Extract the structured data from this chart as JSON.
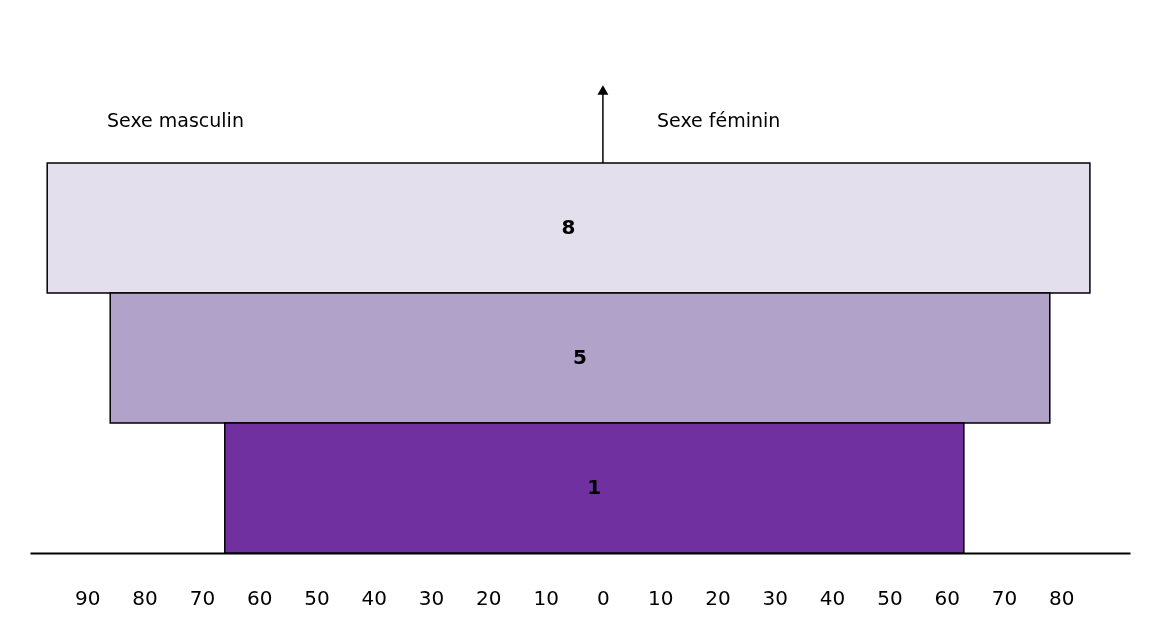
{
  "chart_data": {
    "type": "bar",
    "orientation": "horizontal",
    "categories": [
      null,
      null,
      null
    ],
    "base": [
      -97,
      -86,
      -66
    ],
    "values": [
      182,
      164,
      129
    ],
    "colors": [
      "#e3dfec",
      "#b0a2c8",
      "#7030a0"
    ],
    "annotations": [
      "Sexe masculin",
      "Sexe féminin",
      "8",
      "5",
      "1"
    ],
    "xlim": [
      -100,
      92
    ],
    "xticks": [
      {
        "value": -90,
        "label": "90"
      },
      {
        "value": -80,
        "label": "80"
      },
      {
        "value": -70,
        "label": "70"
      },
      {
        "value": -60,
        "label": "60"
      },
      {
        "value": -50,
        "label": "50"
      },
      {
        "value": -40,
        "label": "40"
      },
      {
        "value": -30,
        "label": "30"
      },
      {
        "value": -20,
        "label": "20"
      },
      {
        "value": -10,
        "label": "10"
      },
      0,
      10,
      20,
      30,
      40,
      50,
      60,
      70,
      80
    ],
    "grid": false
  }
}
